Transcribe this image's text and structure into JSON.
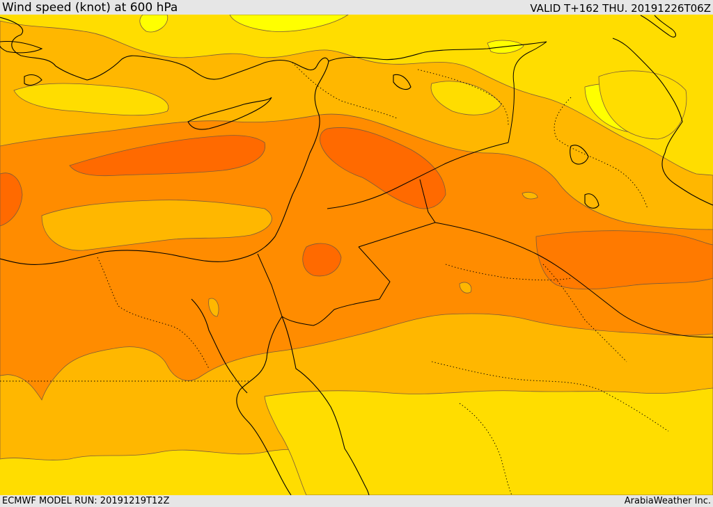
{
  "header": {
    "title": "Wind speed (knot) at 600 hPa",
    "valid": "VALID T+162 THU. 20191226T06Z"
  },
  "footer": {
    "model_run": "ECMWF MODEL RUN: 20191219T12Z",
    "credit": "ArabiaWeather Inc."
  },
  "map": {
    "fill_levels": [
      {
        "level": "lowest",
        "color": "#ffff00"
      },
      {
        "level": "low",
        "color": "#ffdd00"
      },
      {
        "level": "moderate",
        "color": "#ffb700"
      },
      {
        "level": "high",
        "color": "#ff8c00"
      },
      {
        "level": "strong",
        "color": "#ff7700"
      },
      {
        "level": "strongest",
        "color": "#ff5e00"
      }
    ],
    "contour_color": "#7a5a3a",
    "boundary_color": "#000000"
  }
}
